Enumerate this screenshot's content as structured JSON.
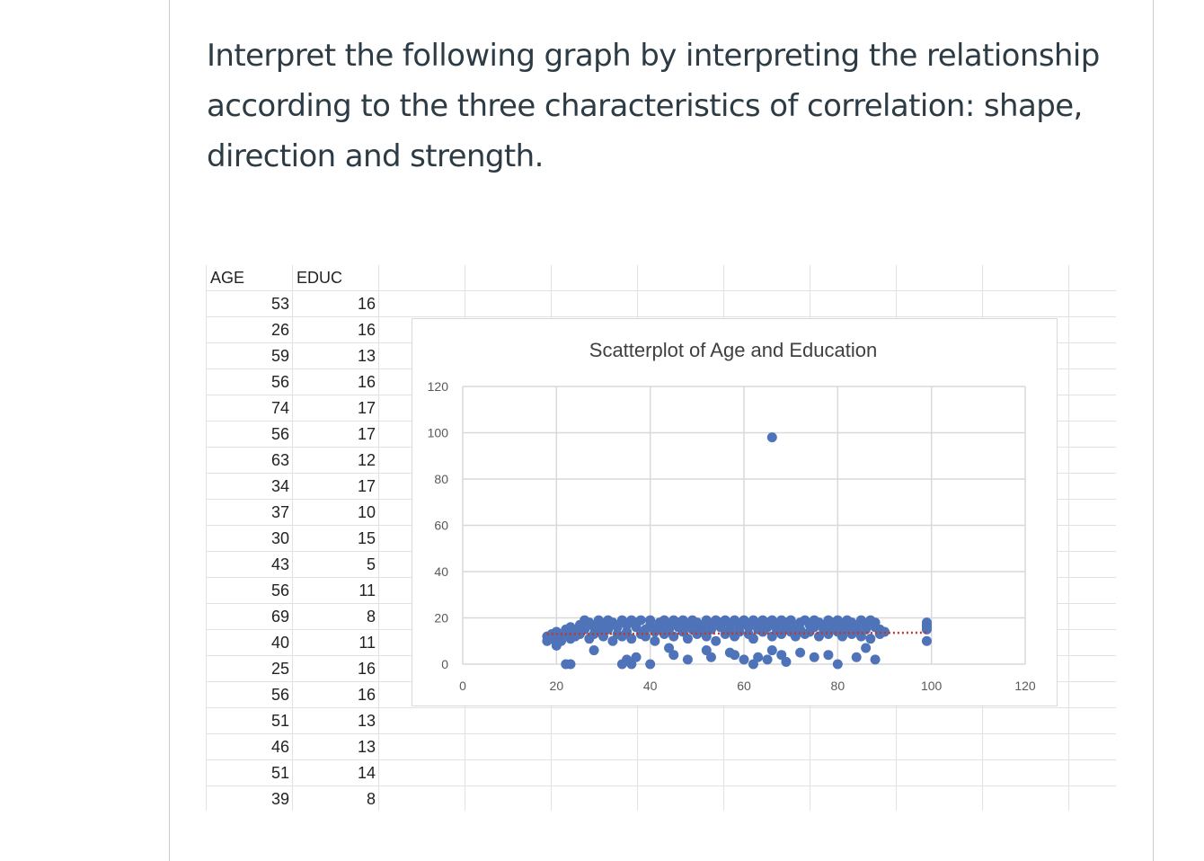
{
  "question": {
    "text": "Interpret the following graph by interpreting the relationship according to the three characteristics of correlation: shape, direction and strength."
  },
  "table": {
    "headers": [
      "AGE",
      "EDUC"
    ],
    "rows": [
      [
        53,
        16
      ],
      [
        26,
        16
      ],
      [
        59,
        13
      ],
      [
        56,
        16
      ],
      [
        74,
        17
      ],
      [
        56,
        17
      ],
      [
        63,
        12
      ],
      [
        34,
        17
      ],
      [
        37,
        10
      ],
      [
        30,
        15
      ],
      [
        43,
        5
      ],
      [
        56,
        11
      ],
      [
        69,
        8
      ],
      [
        40,
        11
      ],
      [
        25,
        16
      ],
      [
        56,
        16
      ],
      [
        51,
        13
      ],
      [
        46,
        13
      ],
      [
        51,
        14
      ],
      [
        39,
        8
      ]
    ]
  },
  "chart_data": {
    "type": "scatter",
    "title": "Scatterplot of Age and Education",
    "xlabel": "",
    "ylabel": "",
    "xlim": [
      0,
      120
    ],
    "ylim": [
      0,
      120
    ],
    "x_ticks": [
      0,
      20,
      40,
      60,
      80,
      100,
      120
    ],
    "y_ticks": [
      0,
      20,
      40,
      60,
      80,
      100,
      120
    ],
    "grid": true,
    "marker_color": "#4f73b8",
    "trendline": {
      "style": "dotted",
      "color": "#c0392b",
      "x": [
        18,
        99
      ],
      "y": [
        13,
        13.6
      ]
    },
    "series": [
      {
        "values": [
          [
            66,
            98
          ],
          [
            18,
            12
          ],
          [
            18,
            10
          ],
          [
            19,
            13
          ],
          [
            19,
            11
          ],
          [
            20,
            9
          ],
          [
            20,
            14
          ],
          [
            21,
            12
          ],
          [
            21,
            10
          ],
          [
            22,
            15
          ],
          [
            22,
            13
          ],
          [
            23,
            11
          ],
          [
            23,
            16
          ],
          [
            24,
            14
          ],
          [
            24,
            12
          ],
          [
            25,
            17
          ],
          [
            25,
            13
          ],
          [
            26,
            19
          ],
          [
            26,
            15
          ],
          [
            27,
            11
          ],
          [
            27,
            18
          ],
          [
            28,
            16
          ],
          [
            28,
            13
          ],
          [
            29,
            19
          ],
          [
            29,
            14
          ],
          [
            30,
            12
          ],
          [
            30,
            17
          ],
          [
            31,
            19
          ],
          [
            31,
            15
          ],
          [
            32,
            10
          ],
          [
            32,
            18
          ],
          [
            33,
            16
          ],
          [
            33,
            13
          ],
          [
            34,
            19
          ],
          [
            34,
            12
          ],
          [
            35,
            17
          ],
          [
            35,
            14
          ],
          [
            36,
            19
          ],
          [
            36,
            11
          ],
          [
            37,
            16
          ],
          [
            37,
            18
          ],
          [
            38,
            13
          ],
          [
            38,
            19
          ],
          [
            39,
            15
          ],
          [
            39,
            12
          ],
          [
            40,
            17
          ],
          [
            40,
            19
          ],
          [
            41,
            14
          ],
          [
            41,
            10
          ],
          [
            42,
            18
          ],
          [
            42,
            16
          ],
          [
            43,
            19
          ],
          [
            43,
            13
          ],
          [
            44,
            15
          ],
          [
            44,
            17
          ],
          [
            45,
            19
          ],
          [
            45,
            12
          ],
          [
            46,
            16
          ],
          [
            46,
            18
          ],
          [
            47,
            14
          ],
          [
            47,
            19
          ],
          [
            48,
            11
          ],
          [
            48,
            17
          ],
          [
            49,
            15
          ],
          [
            49,
            19
          ],
          [
            50,
            13
          ],
          [
            50,
            18
          ],
          [
            51,
            16
          ],
          [
            51,
            14
          ],
          [
            52,
            19
          ],
          [
            52,
            12
          ],
          [
            53,
            17
          ],
          [
            53,
            15
          ],
          [
            54,
            19
          ],
          [
            54,
            10
          ],
          [
            55,
            16
          ],
          [
            55,
            18
          ],
          [
            56,
            13
          ],
          [
            56,
            19
          ],
          [
            57,
            15
          ],
          [
            57,
            17
          ],
          [
            58,
            19
          ],
          [
            58,
            12
          ],
          [
            59,
            16
          ],
          [
            59,
            14
          ],
          [
            60,
            18
          ],
          [
            60,
            19
          ],
          [
            61,
            13
          ],
          [
            61,
            16
          ],
          [
            62,
            19
          ],
          [
            62,
            11
          ],
          [
            63,
            17
          ],
          [
            63,
            15
          ],
          [
            64,
            19
          ],
          [
            64,
            14
          ],
          [
            65,
            16
          ],
          [
            65,
            18
          ],
          [
            66,
            12
          ],
          [
            66,
            19
          ],
          [
            67,
            15
          ],
          [
            67,
            17
          ],
          [
            68,
            19
          ],
          [
            68,
            13
          ],
          [
            69,
            16
          ],
          [
            69,
            18
          ],
          [
            70,
            14
          ],
          [
            70,
            19
          ],
          [
            71,
            12
          ],
          [
            71,
            16
          ],
          [
            72,
            18
          ],
          [
            72,
            15
          ],
          [
            73,
            19
          ],
          [
            73,
            13
          ],
          [
            74,
            17
          ],
          [
            74,
            14
          ],
          [
            75,
            16
          ],
          [
            75,
            19
          ],
          [
            76,
            12
          ],
          [
            76,
            18
          ],
          [
            77,
            15
          ],
          [
            77,
            17
          ],
          [
            78,
            19
          ],
          [
            78,
            13
          ],
          [
            79,
            16
          ],
          [
            79,
            18
          ],
          [
            80,
            14
          ],
          [
            80,
            19
          ],
          [
            81,
            12
          ],
          [
            81,
            17
          ],
          [
            82,
            15
          ],
          [
            82,
            19
          ],
          [
            83,
            13
          ],
          [
            83,
            18
          ],
          [
            84,
            16
          ],
          [
            84,
            14
          ],
          [
            85,
            19
          ],
          [
            85,
            12
          ],
          [
            86,
            17
          ],
          [
            86,
            15
          ],
          [
            87,
            19
          ],
          [
            87,
            11
          ],
          [
            88,
            16
          ],
          [
            88,
            18
          ],
          [
            89,
            13
          ],
          [
            89,
            15
          ],
          [
            90,
            14
          ],
          [
            22,
            0
          ],
          [
            23,
            0
          ],
          [
            34,
            0
          ],
          [
            35,
            2
          ],
          [
            36,
            0
          ],
          [
            37,
            3
          ],
          [
            40,
            0
          ],
          [
            45,
            4
          ],
          [
            48,
            2
          ],
          [
            53,
            3
          ],
          [
            58,
            4
          ],
          [
            60,
            2
          ],
          [
            62,
            0
          ],
          [
            63,
            3
          ],
          [
            65,
            2
          ],
          [
            68,
            4
          ],
          [
            69,
            1
          ],
          [
            75,
            3
          ],
          [
            78,
            4
          ],
          [
            80,
            0
          ],
          [
            84,
            3
          ],
          [
            88,
            2
          ],
          [
            20,
            8
          ],
          [
            28,
            6
          ],
          [
            44,
            7
          ],
          [
            52,
            6
          ],
          [
            57,
            5
          ],
          [
            66,
            6
          ],
          [
            72,
            5
          ],
          [
            86,
            7
          ],
          [
            99,
            18
          ],
          [
            99,
            17
          ],
          [
            99,
            16
          ],
          [
            99,
            15
          ],
          [
            99,
            10
          ]
        ]
      }
    ]
  }
}
